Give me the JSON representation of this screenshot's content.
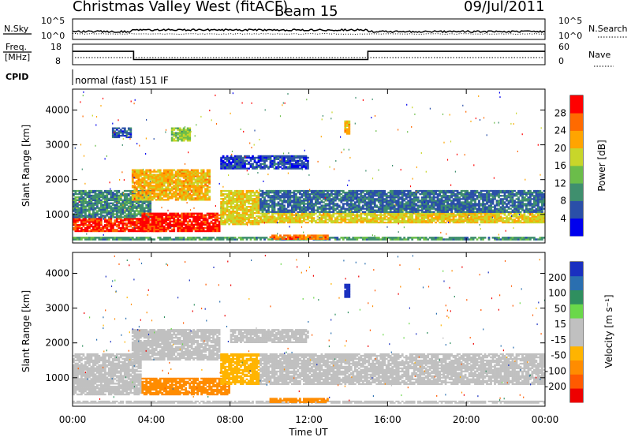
{
  "header": {
    "station": "Christmas Valley West (fitACF)",
    "beam": "Beam 15",
    "date": "09/Jul/2011"
  },
  "strips": {
    "nsky_label": "N.Sky",
    "nsky_ticks": [
      "10^5",
      "10^0"
    ],
    "nsearch_label": "N.Search",
    "nsearch_ticks": [
      "10^5",
      "10^0"
    ],
    "freq_label_1": "Freq.",
    "freq_label_2": "[MHz]",
    "freq_ticks": [
      "18",
      "8"
    ],
    "nave_label": "Nave",
    "nave_ticks": [
      "60",
      "0"
    ],
    "cpid_label": "CPID",
    "cpid_text": "normal (fast) 151 IF"
  },
  "colors": {
    "power_scale": [
      "#0000ee",
      "#2a4fa8",
      "#3f8f6e",
      "#6bbd4a",
      "#c8d62a",
      "#ffa400",
      "#ff6a00",
      "#ff0000"
    ],
    "velocity_scale": [
      "#ee0000",
      "#ff5a00",
      "#ff8c00",
      "#ffb400",
      "#c0c0c0",
      "#c0c0c0",
      "#6ad84a",
      "#2f8f5f",
      "#2a6fb0",
      "#1a30c0"
    ]
  },
  "chart_data": [
    {
      "type": "heatmap",
      "panel": "power",
      "ylabel": "Slant Range [km]",
      "yticks": [
        1000,
        2000,
        3000,
        4000
      ],
      "ylim": [
        180,
        4600
      ],
      "xlim": [
        0,
        24
      ],
      "colorbar_label": "Power [dB]",
      "colorbar_ticks": [
        "4",
        "8",
        "12",
        "16",
        "20",
        "24",
        "28"
      ],
      "colorbar_range": [
        0,
        30
      ],
      "features": [
        {
          "t0": 0.0,
          "t1": 24.0,
          "r0": 260,
          "r1": 360,
          "level": 10
        },
        {
          "t0": 0.0,
          "t1": 4.5,
          "r0": 500,
          "r1": 900,
          "level": 27
        },
        {
          "t0": 0.0,
          "t1": 4.0,
          "r0": 900,
          "r1": 1700,
          "level": 9
        },
        {
          "t0": 3.5,
          "t1": 7.5,
          "r0": 500,
          "r1": 1050,
          "level": 28
        },
        {
          "t0": 3.0,
          "t1": 7.0,
          "r0": 1400,
          "r1": 2300,
          "level": 20
        },
        {
          "t0": 7.5,
          "t1": 9.5,
          "r0": 700,
          "r1": 1700,
          "level": 18
        },
        {
          "t0": 9.5,
          "t1": 24.0,
          "r0": 750,
          "r1": 1050,
          "level": 18
        },
        {
          "t0": 9.5,
          "t1": 24.0,
          "r0": 1050,
          "r1": 1700,
          "level": 7
        },
        {
          "t0": 7.5,
          "t1": 12.0,
          "r0": 2300,
          "r1": 2700,
          "level": 5
        },
        {
          "t0": 5.0,
          "t1": 6.0,
          "r0": 3100,
          "r1": 3500,
          "level": 14
        },
        {
          "t0": 2.0,
          "t1": 3.0,
          "r0": 3200,
          "r1": 3500,
          "level": 6
        },
        {
          "t0": 13.8,
          "t1": 14.1,
          "r0": 3300,
          "r1": 3700,
          "level": 20
        },
        {
          "t0": 10.0,
          "t1": 13.0,
          "r0": 280,
          "r1": 420,
          "level": 24
        }
      ]
    },
    {
      "type": "heatmap",
      "panel": "velocity",
      "ylabel": "Slant Range [km]",
      "yticks": [
        1000,
        2000,
        3000,
        4000
      ],
      "ylim": [
        180,
        4600
      ],
      "xlim": [
        0,
        24
      ],
      "xticks": [
        "00:00",
        "04:00",
        "08:00",
        "12:00",
        "16:00",
        "20:00",
        "00:00"
      ],
      "xlabel": "Time UT",
      "colorbar_label": "Velocity [m s⁻¹]",
      "colorbar_ticks": [
        "-200",
        "-100",
        "-50",
        "-15",
        "15",
        "50",
        "100",
        "200"
      ],
      "colorbar_range": [
        -250,
        250
      ],
      "features": [
        {
          "t0": 0.0,
          "t1": 24.0,
          "r0": 260,
          "r1": 340,
          "level": 0
        },
        {
          "t0": 0.0,
          "t1": 3.5,
          "r0": 500,
          "r1": 1700,
          "level": 0
        },
        {
          "t0": 3.5,
          "t1": 8.0,
          "r0": 500,
          "r1": 1000,
          "level": -70
        },
        {
          "t0": 3.0,
          "t1": 7.5,
          "r0": 1500,
          "r1": 2400,
          "level": 0
        },
        {
          "t0": 7.5,
          "t1": 9.5,
          "r0": 800,
          "r1": 1700,
          "level": -30
        },
        {
          "t0": 9.5,
          "t1": 24.0,
          "r0": 800,
          "r1": 1700,
          "level": 0
        },
        {
          "t0": 10.0,
          "t1": 13.0,
          "r0": 280,
          "r1": 420,
          "level": -60
        },
        {
          "t0": 13.8,
          "t1": 14.1,
          "r0": 3300,
          "r1": 3700,
          "level": 220
        },
        {
          "t0": 8.0,
          "t1": 12.0,
          "r0": 2000,
          "r1": 2400,
          "level": 0
        }
      ]
    },
    {
      "type": "line",
      "panel": "frequency",
      "ylabel": "Freq. [MHz]",
      "ylim": [
        8,
        18
      ],
      "x": [
        0.0,
        3.1,
        3.1,
        15.0,
        15.0,
        24.0
      ],
      "values": [
        14.5,
        14.5,
        10.5,
        10.5,
        14.5,
        14.5
      ]
    }
  ]
}
